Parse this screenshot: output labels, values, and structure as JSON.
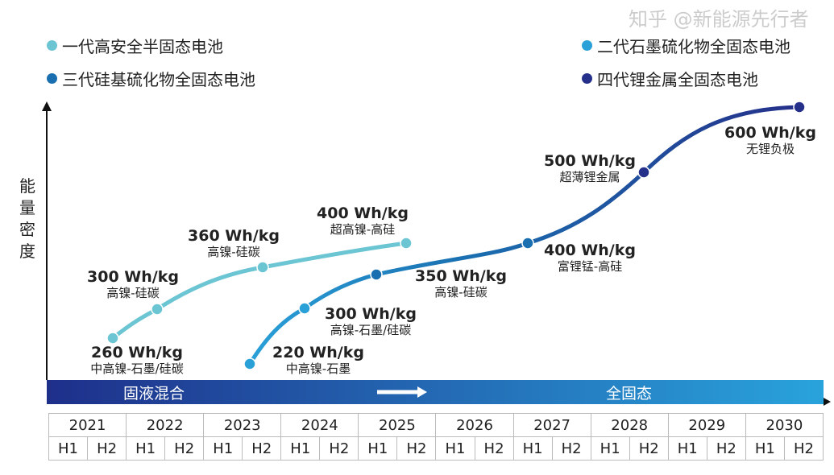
{
  "legend": [
    {
      "label": "一代高安全半固态电池",
      "color": "#6cc5d3"
    },
    {
      "label": "二代石墨硫化物全固态电池",
      "color": "#2aa0d8"
    },
    {
      "label": "三代硅基硫化物全固态电池",
      "color": "#1a6fb0"
    },
    {
      "label": "四代锂金属全固态电池",
      "color": "#25308a"
    }
  ],
  "y_axis_label": "能量密度",
  "points": [
    {
      "value": "260 Wh/kg",
      "desc": "中高镍-石墨/硅碳"
    },
    {
      "value": "300 Wh/kg",
      "desc": "高镍-硅碳"
    },
    {
      "value": "360 Wh/kg",
      "desc": "高镍-硅碳"
    },
    {
      "value": "400 Wh/kg",
      "desc": "超高镍-高硅"
    },
    {
      "value": "220 Wh/kg",
      "desc": "中高镍-石墨"
    },
    {
      "value": "300 Wh/kg",
      "desc": "高镍-石墨/硅碳"
    },
    {
      "value": "350 Wh/kg",
      "desc": "高镍-硅碳"
    },
    {
      "value": "400 Wh/kg",
      "desc": "富锂锰-高硅"
    },
    {
      "value": "500 Wh/kg",
      "desc": "超薄锂金属"
    },
    {
      "value": "600 Wh/kg",
      "desc": "无锂负极"
    }
  ],
  "band": {
    "left": "固液混合",
    "right": "全固态",
    "colors": [
      "#1e2f8a",
      "#29a3dc"
    ]
  },
  "years": [
    "2021",
    "2022",
    "2023",
    "2024",
    "2025",
    "2026",
    "2027",
    "2028",
    "2029",
    "2030"
  ],
  "halves": [
    "H1",
    "H2"
  ],
  "watermark": "知乎 @新能源先行者"
}
